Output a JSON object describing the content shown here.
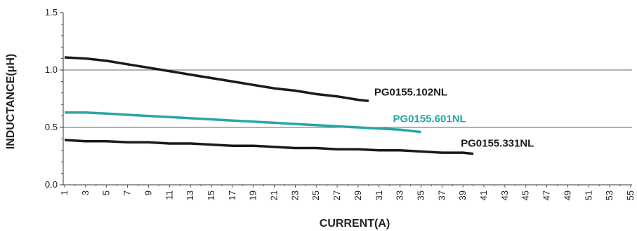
{
  "chart_data": {
    "type": "line",
    "xlabel": "CURRENT(A)",
    "ylabel": "INDUCTANCE(μH)",
    "xlim": [
      1,
      55
    ],
    "ylim": [
      0,
      1.5
    ],
    "x_ticks": [
      "1",
      "3",
      "5",
      "7",
      "9",
      "11",
      "13",
      "15",
      "17",
      "19",
      "21",
      "23",
      "25",
      "27",
      "29",
      "31",
      "33",
      "35",
      "37",
      "39",
      "41",
      "43",
      "45",
      "47",
      "49",
      "51",
      "53",
      "55"
    ],
    "y_ticks": [
      "0.0",
      "0.5",
      "1.0",
      "1.5"
    ],
    "grid": "horizontal",
    "series": [
      {
        "name": "PG0155.102NL",
        "color": "#1a1a1a",
        "x": [
          1,
          3,
          5,
          7,
          9,
          11,
          13,
          15,
          17,
          19,
          21,
          23,
          25,
          27,
          29,
          30
        ],
        "y": [
          1.11,
          1.1,
          1.08,
          1.05,
          1.02,
          0.99,
          0.96,
          0.93,
          0.9,
          0.87,
          0.84,
          0.82,
          0.79,
          0.77,
          0.74,
          0.73
        ]
      },
      {
        "name": "PG0155.601NL",
        "color": "#2aa5a5",
        "x": [
          1,
          3,
          5,
          7,
          9,
          11,
          13,
          15,
          17,
          19,
          21,
          23,
          25,
          27,
          29,
          31,
          33,
          35
        ],
        "y": [
          0.63,
          0.63,
          0.62,
          0.61,
          0.6,
          0.59,
          0.58,
          0.57,
          0.56,
          0.55,
          0.54,
          0.53,
          0.52,
          0.51,
          0.5,
          0.49,
          0.48,
          0.46
        ]
      },
      {
        "name": "PG0155.331NL",
        "color": "#1a1a1a",
        "x": [
          1,
          3,
          5,
          7,
          9,
          11,
          13,
          15,
          17,
          19,
          21,
          23,
          25,
          27,
          29,
          31,
          33,
          35,
          37,
          39,
          40
        ],
        "y": [
          0.39,
          0.38,
          0.38,
          0.37,
          0.37,
          0.36,
          0.36,
          0.35,
          0.34,
          0.34,
          0.33,
          0.32,
          0.32,
          0.31,
          0.31,
          0.3,
          0.3,
          0.29,
          0.28,
          0.28,
          0.27
        ]
      }
    ]
  }
}
